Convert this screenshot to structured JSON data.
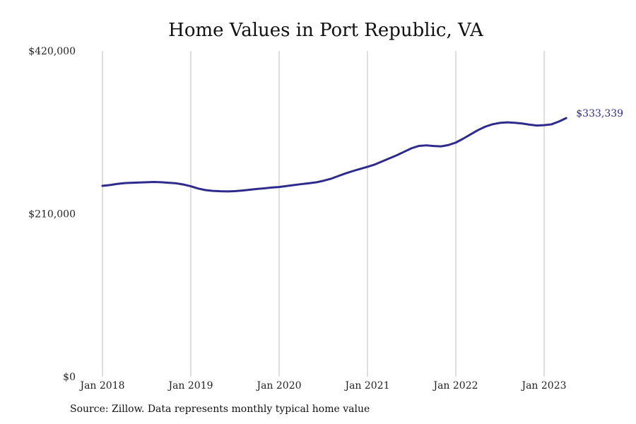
{
  "chart_data": {
    "type": "line",
    "title": "Home Values in Port Republic, VA",
    "xlabel": "",
    "ylabel": "",
    "ylim": [
      0,
      420000
    ],
    "y_ticks": [
      {
        "value": 0,
        "label": "$0"
      },
      {
        "value": 210000,
        "label": "$210,000"
      },
      {
        "value": 420000,
        "label": "$420,000"
      }
    ],
    "x_ticks": [
      "Jan 2018",
      "Jan 2019",
      "Jan 2020",
      "Jan 2021",
      "Jan 2022",
      "Jan 2023"
    ],
    "grid": "vertical lines at each January",
    "legend": "none",
    "series": [
      {
        "color": "#2e2b8c",
        "end_label": "$333,339",
        "points": [
          {
            "x": "2018-01",
            "y": 246000
          },
          {
            "x": "2018-02",
            "y": 247000
          },
          {
            "x": "2018-03",
            "y": 248500
          },
          {
            "x": "2018-04",
            "y": 249500
          },
          {
            "x": "2018-05",
            "y": 250000
          },
          {
            "x": "2018-06",
            "y": 250300
          },
          {
            "x": "2018-07",
            "y": 250700
          },
          {
            "x": "2018-08",
            "y": 251000
          },
          {
            "x": "2018-09",
            "y": 250700
          },
          {
            "x": "2018-10",
            "y": 250000
          },
          {
            "x": "2018-11",
            "y": 249300
          },
          {
            "x": "2018-12",
            "y": 247700
          },
          {
            "x": "2019-01",
            "y": 245500
          },
          {
            "x": "2019-02",
            "y": 242500
          },
          {
            "x": "2019-03",
            "y": 240500
          },
          {
            "x": "2019-04",
            "y": 239500
          },
          {
            "x": "2019-05",
            "y": 239000
          },
          {
            "x": "2019-06",
            "y": 238800
          },
          {
            "x": "2019-07",
            "y": 239200
          },
          {
            "x": "2019-08",
            "y": 240000
          },
          {
            "x": "2019-09",
            "y": 241000
          },
          {
            "x": "2019-10",
            "y": 242000
          },
          {
            "x": "2019-11",
            "y": 242800
          },
          {
            "x": "2019-12",
            "y": 243800
          },
          {
            "x": "2020-01",
            "y": 244500
          },
          {
            "x": "2020-02",
            "y": 245800
          },
          {
            "x": "2020-03",
            "y": 247000
          },
          {
            "x": "2020-04",
            "y": 248200
          },
          {
            "x": "2020-05",
            "y": 249300
          },
          {
            "x": "2020-06",
            "y": 250500
          },
          {
            "x": "2020-07",
            "y": 252500
          },
          {
            "x": "2020-08",
            "y": 255000
          },
          {
            "x": "2020-09",
            "y": 258500
          },
          {
            "x": "2020-10",
            "y": 262000
          },
          {
            "x": "2020-11",
            "y": 265000
          },
          {
            "x": "2020-12",
            "y": 267800
          },
          {
            "x": "2021-01",
            "y": 270500
          },
          {
            "x": "2021-02",
            "y": 273500
          },
          {
            "x": "2021-03",
            "y": 277500
          },
          {
            "x": "2021-04",
            "y": 281500
          },
          {
            "x": "2021-05",
            "y": 285500
          },
          {
            "x": "2021-06",
            "y": 290000
          },
          {
            "x": "2021-07",
            "y": 294500
          },
          {
            "x": "2021-08",
            "y": 297500
          },
          {
            "x": "2021-09",
            "y": 298200
          },
          {
            "x": "2021-10",
            "y": 297300
          },
          {
            "x": "2021-11",
            "y": 296900
          },
          {
            "x": "2021-12",
            "y": 298600
          },
          {
            "x": "2022-01",
            "y": 301800
          },
          {
            "x": "2022-02",
            "y": 306800
          },
          {
            "x": "2022-03",
            "y": 312300
          },
          {
            "x": "2022-04",
            "y": 317800
          },
          {
            "x": "2022-05",
            "y": 322300
          },
          {
            "x": "2022-06",
            "y": 325400
          },
          {
            "x": "2022-07",
            "y": 327200
          },
          {
            "x": "2022-08",
            "y": 327900
          },
          {
            "x": "2022-09",
            "y": 327300
          },
          {
            "x": "2022-10",
            "y": 326400
          },
          {
            "x": "2022-11",
            "y": 324900
          },
          {
            "x": "2022-12",
            "y": 323800
          },
          {
            "x": "2023-01",
            "y": 324200
          },
          {
            "x": "2023-02",
            "y": 325300
          },
          {
            "x": "2023-03",
            "y": 328900
          },
          {
            "x": "2023-04",
            "y": 333339
          }
        ]
      }
    ],
    "source": "Source: Zillow. Data represents monthly typical home value"
  }
}
